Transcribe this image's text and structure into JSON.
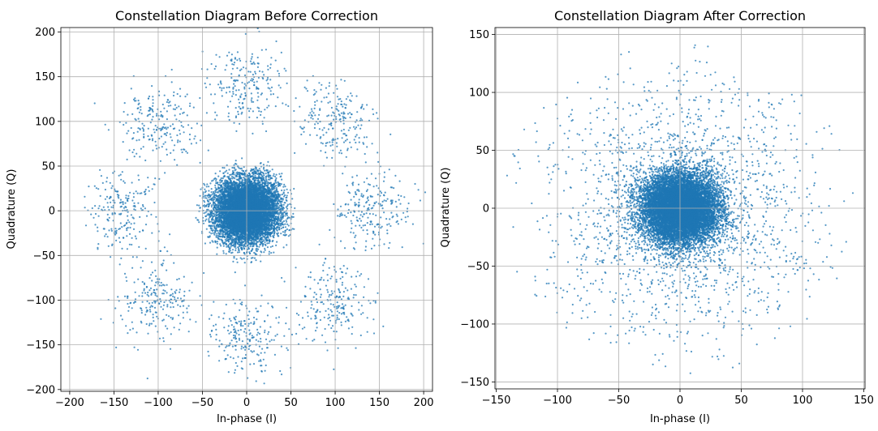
{
  "chart_data": [
    {
      "type": "scatter",
      "title": "Constellation Diagram Before Correction",
      "xlabel": "In-phase (I)",
      "ylabel": "Quadrature (Q)",
      "xlim": [
        -210,
        210
      ],
      "ylim": [
        -202,
        205
      ],
      "xticks": [
        -200,
        -150,
        -100,
        -50,
        0,
        50,
        100,
        150,
        200
      ],
      "yticks": [
        -200,
        -150,
        -100,
        -50,
        0,
        50,
        100,
        150,
        200
      ],
      "grid": true,
      "marker_color": "#1f77b4",
      "clusters": [
        {
          "name": "center",
          "center": [
            0,
            0
          ],
          "spread": 18,
          "max_radius": 60,
          "count": 9000
        },
        {
          "center": [
            141,
            0
          ],
          "spread": 22,
          "count": 220
        },
        {
          "center": [
            100,
            100
          ],
          "spread": 22,
          "count": 220
        },
        {
          "center": [
            0,
            141
          ],
          "spread": 22,
          "count": 220
        },
        {
          "center": [
            -100,
            100
          ],
          "spread": 22,
          "count": 220
        },
        {
          "center": [
            -141,
            0
          ],
          "spread": 22,
          "count": 220
        },
        {
          "center": [
            -100,
            -100
          ],
          "spread": 22,
          "count": 220
        },
        {
          "center": [
            0,
            -141
          ],
          "spread": 22,
          "count": 220
        },
        {
          "center": [
            100,
            -100
          ],
          "spread": 22,
          "count": 220
        }
      ]
    },
    {
      "type": "scatter",
      "title": "Constellation Diagram After Correction",
      "xlabel": "In-phase (I)",
      "ylabel": "Quadrature (Q)",
      "xlim": [
        -151,
        151
      ],
      "ylim": [
        -156,
        156
      ],
      "xticks": [
        -150,
        -100,
        -50,
        0,
        50,
        100,
        150
      ],
      "yticks": [
        -150,
        -100,
        -50,
        0,
        50,
        100,
        150
      ],
      "grid": true,
      "marker_color": "#1f77b4",
      "clusters": [
        {
          "name": "center",
          "center": [
            0,
            0
          ],
          "spread": 16,
          "max_radius": 55,
          "count": 12000
        },
        {
          "name": "outliers",
          "center": [
            0,
            0
          ],
          "spread": 55,
          "min_radius": 45,
          "max_radius": 145,
          "count": 1400
        }
      ]
    }
  ]
}
